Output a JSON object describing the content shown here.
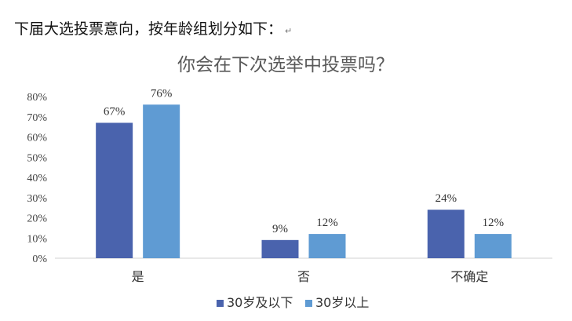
{
  "heading": {
    "text": "下届大选投票意向，按年龄组划分如下：",
    "return_mark": "↵"
  },
  "chart_data": {
    "type": "bar",
    "title": "你会在下次选举中投票吗？",
    "categories": [
      "是",
      "否",
      "不确定"
    ],
    "series": [
      {
        "name": "30岁及以下",
        "values": [
          67,
          9,
          24
        ],
        "labels": [
          "67%",
          "9%",
          "24%"
        ],
        "color": "#4a63ad"
      },
      {
        "name": "30岁以上",
        "values": [
          76,
          12,
          12
        ],
        "labels": [
          "76%",
          "12%",
          "12%"
        ],
        "color": "#5f9bd3"
      }
    ],
    "ylim": [
      0,
      80
    ],
    "yticks": [
      0,
      10,
      20,
      30,
      40,
      50,
      60,
      70,
      80
    ],
    "ytick_labels": [
      "0%",
      "10%",
      "20%",
      "30%",
      "40%",
      "50%",
      "60%",
      "70%",
      "80%"
    ],
    "xlabel": "",
    "ylabel": "",
    "grid": false,
    "legend_position": "bottom"
  }
}
